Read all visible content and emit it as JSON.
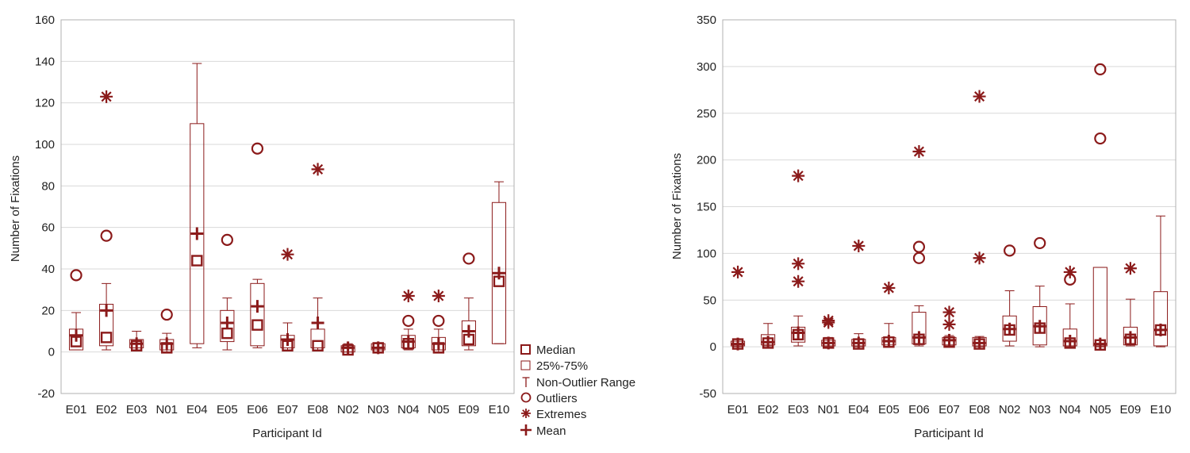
{
  "colors": {
    "mark": "#8b1a1a",
    "grid": "#d9d9d9",
    "frame": "#b0b0b0",
    "text": "#222222"
  },
  "legend": {
    "position": "right of left chart",
    "items": [
      {
        "symbol": "median",
        "label": "Median"
      },
      {
        "symbol": "box",
        "label": "25%-75%"
      },
      {
        "symbol": "whisker",
        "label": "Non-Outlier Range"
      },
      {
        "symbol": "outlier",
        "label": "Outliers"
      },
      {
        "symbol": "extreme",
        "label": "Extremes"
      },
      {
        "symbol": "mean",
        "label": "Mean"
      }
    ]
  },
  "chart_data": [
    {
      "type": "box",
      "title": "",
      "xlabel": "Participant Id",
      "ylabel": "Number of Fixations",
      "ylim": [
        -20,
        160
      ],
      "yticks": [
        -20,
        0,
        20,
        40,
        60,
        80,
        100,
        120,
        140,
        160
      ],
      "grid": true,
      "categories": [
        "E01",
        "E02",
        "E03",
        "N01",
        "E04",
        "E05",
        "E06",
        "E07",
        "E08",
        "N02",
        "N03",
        "N04",
        "N05",
        "E09",
        "E10"
      ],
      "boxes": [
        {
          "q1": 1,
          "q3": 11,
          "median": 5,
          "mean": 8,
          "whisker_low": 1,
          "whisker_high": 19,
          "outliers": [
            37
          ],
          "extremes": []
        },
        {
          "q1": 3,
          "q3": 23,
          "median": 7,
          "mean": 20,
          "whisker_low": 1,
          "whisker_high": 33,
          "outliers": [
            56
          ],
          "extremes": [
            123
          ]
        },
        {
          "q1": 2,
          "q3": 6,
          "median": 3,
          "mean": 4,
          "whisker_low": 1,
          "whisker_high": 10,
          "outliers": [],
          "extremes": []
        },
        {
          "q1": 1,
          "q3": 6,
          "median": 2,
          "mean": 4,
          "whisker_low": 0,
          "whisker_high": 9,
          "outliers": [
            18
          ],
          "extremes": []
        },
        {
          "q1": 4,
          "q3": 110,
          "median": 44,
          "mean": 57,
          "whisker_low": 2,
          "whisker_high": 139,
          "outliers": [],
          "extremes": []
        },
        {
          "q1": 5,
          "q3": 20,
          "median": 9,
          "mean": 14,
          "whisker_low": 1,
          "whisker_high": 26,
          "outliers": [
            54
          ],
          "extremes": []
        },
        {
          "q1": 3,
          "q3": 33,
          "median": 13,
          "mean": 22,
          "whisker_low": 2,
          "whisker_high": 35,
          "outliers": [
            98
          ],
          "extremes": []
        },
        {
          "q1": 2,
          "q3": 8,
          "median": 3,
          "mean": 6,
          "whisker_low": 1,
          "whisker_high": 14,
          "outliers": [],
          "extremes": [
            47
          ]
        },
        {
          "q1": 2,
          "q3": 11,
          "median": 3,
          "mean": 14,
          "whisker_low": 1,
          "whisker_high": 26,
          "outliers": [],
          "extremes": [
            88
          ]
        },
        {
          "q1": 0,
          "q3": 3,
          "median": 1,
          "mean": 2,
          "whisker_low": 0,
          "whisker_high": 4,
          "outliers": [],
          "extremes": []
        },
        {
          "q1": 1,
          "q3": 4,
          "median": 2,
          "mean": 2,
          "whisker_low": 0,
          "whisker_high": 4,
          "outliers": [],
          "extremes": []
        },
        {
          "q1": 2,
          "q3": 8,
          "median": 4,
          "mean": 5,
          "whisker_low": 1,
          "whisker_high": 11,
          "outliers": [
            15
          ],
          "extremes": [
            27
          ]
        },
        {
          "q1": 1,
          "q3": 7,
          "median": 2,
          "mean": 4,
          "whisker_low": 0,
          "whisker_high": 11,
          "outliers": [
            15
          ],
          "extremes": [
            27
          ]
        },
        {
          "q1": 3,
          "q3": 15,
          "median": 6,
          "mean": 10,
          "whisker_low": 1,
          "whisker_high": 26,
          "outliers": [
            45
          ],
          "extremes": []
        },
        {
          "q1": 4,
          "q3": 72,
          "median": 34,
          "mean": 38,
          "whisker_low": 4,
          "whisker_high": 82,
          "outliers": [],
          "extremes": []
        }
      ]
    },
    {
      "type": "box",
      "title": "",
      "xlabel": "Participant Id",
      "ylabel": "Number of Fixations",
      "ylim": [
        -50,
        350
      ],
      "yticks": [
        -50,
        0,
        50,
        100,
        150,
        200,
        250,
        300,
        350
      ],
      "grid": true,
      "categories": [
        "E01",
        "E02",
        "E03",
        "N01",
        "E04",
        "E05",
        "E06",
        "E07",
        "E08",
        "N02",
        "N03",
        "N04",
        "N05",
        "E09",
        "E10"
      ],
      "boxes": [
        {
          "q1": 1,
          "q3": 6,
          "median": 3,
          "mean": 3,
          "whisker_low": 0,
          "whisker_high": 8,
          "outliers": [],
          "extremes": [
            80
          ]
        },
        {
          "q1": 2,
          "q3": 13,
          "median": 4,
          "mean": 5,
          "whisker_low": 1,
          "whisker_high": 25,
          "outliers": [],
          "extremes": []
        },
        {
          "q1": 5,
          "q3": 21,
          "median": 13,
          "mean": 15,
          "whisker_low": 1,
          "whisker_high": 33,
          "outliers": [],
          "extremes": [
            70,
            89,
            183
          ]
        },
        {
          "q1": 1,
          "q3": 7,
          "median": 4,
          "mean": 4,
          "whisker_low": 0,
          "whisker_high": 10,
          "outliers": [],
          "extremes": [
            26,
            28
          ]
        },
        {
          "q1": 1,
          "q3": 8,
          "median": 3,
          "mean": 4,
          "whisker_low": 0,
          "whisker_high": 14,
          "outliers": [],
          "extremes": [
            108
          ]
        },
        {
          "q1": 2,
          "q3": 10,
          "median": 5,
          "mean": 6,
          "whisker_low": 0,
          "whisker_high": 25,
          "outliers": [],
          "extremes": [
            63
          ]
        },
        {
          "q1": 3,
          "q3": 37,
          "median": 8,
          "mean": 10,
          "whisker_low": 1,
          "whisker_high": 44,
          "outliers": [
            95,
            107
          ],
          "extremes": [
            209
          ]
        },
        {
          "q1": 2,
          "q3": 10,
          "median": 5,
          "mean": 7,
          "whisker_low": 1,
          "whisker_high": 12,
          "outliers": [],
          "extremes": [
            24,
            37
          ]
        },
        {
          "q1": 1,
          "q3": 10,
          "median": 3,
          "mean": 4,
          "whisker_low": 0,
          "whisker_high": 11,
          "outliers": [],
          "extremes": [
            95,
            268
          ]
        },
        {
          "q1": 6,
          "q3": 33,
          "median": 18,
          "mean": 19,
          "whisker_low": 1,
          "whisker_high": 60,
          "outliers": [
            103
          ],
          "extremes": []
        },
        {
          "q1": 2,
          "q3": 43,
          "median": 20,
          "mean": 22,
          "whisker_low": 0,
          "whisker_high": 65,
          "outliers": [
            111
          ],
          "extremes": []
        },
        {
          "q1": 1,
          "q3": 19,
          "median": 4,
          "mean": 6,
          "whisker_low": 0,
          "whisker_high": 46,
          "outliers": [
            72
          ],
          "extremes": [
            80
          ]
        },
        {
          "q1": 1,
          "q3": 85,
          "median": 2,
          "mean": 3,
          "whisker_low": 0,
          "whisker_high": 85,
          "outliers": [
            223,
            297
          ],
          "extremes": []
        },
        {
          "q1": 2,
          "q3": 21,
          "median": 8,
          "mean": 10,
          "whisker_low": 1,
          "whisker_high": 51,
          "outliers": [],
          "extremes": [
            84
          ]
        },
        {
          "q1": 1,
          "q3": 59,
          "median": 18,
          "mean": 18,
          "whisker_low": 0,
          "whisker_high": 140,
          "outliers": [],
          "extremes": []
        }
      ]
    }
  ]
}
